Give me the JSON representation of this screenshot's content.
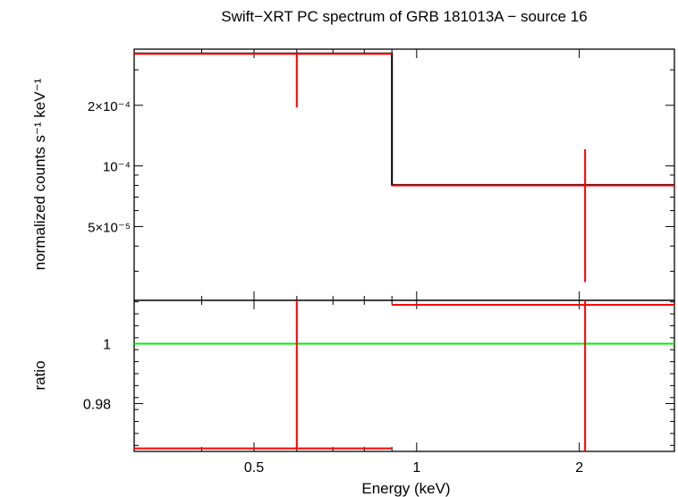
{
  "chart_data": [
    {
      "type": "line",
      "panel": "spectrum",
      "title": "Swift−XRT PC spectrum of GRB 181013A − source 16",
      "xlabel": "Energy (keV)",
      "ylabel": "normalized counts s⁻¹ keV⁻¹",
      "x_scale": "log",
      "y_scale": "log",
      "xlim": [
        0.3,
        3.0
      ],
      "ylim": [
        2.15e-05,
        0.00038
      ],
      "y_ticks": [
        {
          "value": 0.0002,
          "label": "2×10⁻⁴"
        },
        {
          "value": 0.0001,
          "label": "10⁻⁴"
        },
        {
          "value": 5e-05,
          "label": "5×10⁻⁵"
        }
      ],
      "series": [
        {
          "name": "data",
          "color": "#ff0000",
          "points": [
            {
              "x_lo": 0.3,
              "x_hi": 0.9,
              "x": 0.6,
              "y": 0.00036,
              "y_lo": 0.000195,
              "y_hi": 0.00036
            },
            {
              "x_lo": 0.9,
              "x_hi": 3.0,
              "x": 2.05,
              "y": 8e-05,
              "y_lo": 2.65e-05,
              "y_hi": 0.000121
            }
          ]
        },
        {
          "name": "model",
          "color": "#000000",
          "steps": [
            {
              "x_lo": 0.3,
              "x_hi": 0.9,
              "y": 0.000362
            },
            {
              "x_lo": 0.9,
              "x_hi": 3.0,
              "y": 8.05e-05
            }
          ]
        }
      ]
    },
    {
      "type": "line",
      "panel": "ratio",
      "xlabel": "Energy (keV)",
      "ylabel": "ratio",
      "x_scale": "log",
      "xlim": [
        0.3,
        3.0
      ],
      "ylim": [
        0.964,
        1.0145
      ],
      "x_ticks": [
        {
          "value": 0.5,
          "label": "0.5"
        },
        {
          "value": 1,
          "label": "1"
        },
        {
          "value": 2,
          "label": "2"
        }
      ],
      "y_ticks": [
        {
          "value": 1.0,
          "label": "1"
        },
        {
          "value": 0.98,
          "label": "0.98"
        }
      ],
      "reference_line": {
        "y": 1.0,
        "color": "#00ee00"
      },
      "series": [
        {
          "name": "ratio",
          "color": "#ff0000",
          "points": [
            {
              "x_lo": 0.3,
              "x_hi": 0.9,
              "x": 0.6,
              "y": 0.965,
              "y_lo": 0.965,
              "y_hi": 1.0145
            },
            {
              "x_lo": 0.9,
              "x_hi": 3.0,
              "x": 2.05,
              "y": 1.013,
              "y_lo": 0.964,
              "y_hi": 1.0145
            }
          ]
        }
      ]
    }
  ]
}
